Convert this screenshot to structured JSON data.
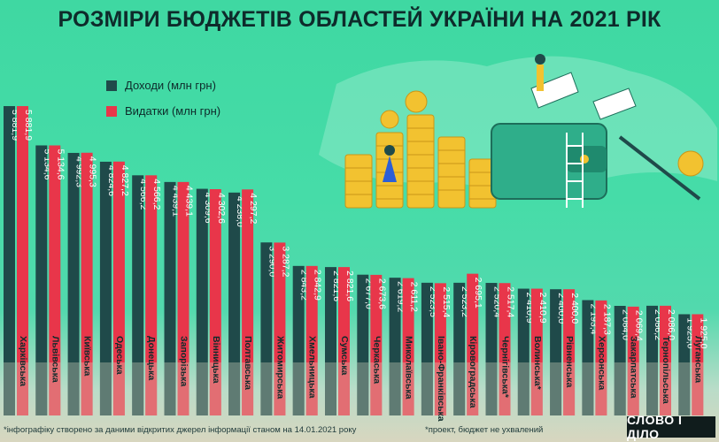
{
  "title": "РОЗМІРИ БЮДЖЕТІВ ОБЛАСТЕЙ УКРАЇНИ НА 2021 РІК",
  "legend": [
    {
      "label": "Доходи (млн грн)",
      "color": "#1f4a4a"
    },
    {
      "label": "Видатки (млн грн)",
      "color": "#e8364a"
    }
  ],
  "footnote": "*інфографіку створено за даними відкритих джерел інформації станом на 14.01.2021 року",
  "footnote2": "*проект, бюджет не ухвалений",
  "logo": "СЛОВО І ДІЛО",
  "chart_data": {
    "type": "bar",
    "categories": [
      "Харківська",
      "Львівська",
      "Київська",
      "Одеська",
      "Донецька",
      "Запорізька",
      "Вінницька",
      "Полтавська",
      "Житомирська",
      "Хмельницька",
      "Сумська",
      "Черкаська",
      "Миколаївська",
      "Івано-Франківська",
      "Кіровоградська",
      "Чернігівська*",
      "Волинська*",
      "Рівненська",
      "Херсонська",
      "Закарпатська",
      "Тернопільська",
      "Луганська"
    ],
    "series": [
      {
        "name": "Доходи (млн грн)",
        "color": "#1f4a4a",
        "values": [
          5881.9,
          5134.6,
          4992.3,
          4824.6,
          4566.2,
          4439.1,
          4309.6,
          4238.0,
          3290.0,
          2843.2,
          2821.6,
          2677.0,
          2619.2,
          2523.5,
          2523.2,
          2520.4,
          2410.9,
          2400.0,
          2193.4,
          2084.0,
          2086.2,
          1925.0
        ],
        "labels": [
          "5 881,9",
          "5 134,6",
          "4 992,3",
          "4 824,6",
          "4 566,2",
          "4 439,1",
          "4 309,6",
          "4 238,0",
          "3 290,0",
          "2 843,2",
          "2 821,6",
          "2 677,0",
          "2 619,2",
          "2 523,5",
          "2 523,2",
          "2 520,4",
          "2 410,9",
          "2 400,0",
          "2 193,4",
          "2 084,0",
          "2 086,2",
          "1 925,0"
        ]
      },
      {
        "name": "Видатки (млн грн)",
        "color": "#e8364a",
        "values": [
          5881.9,
          5134.6,
          4995.3,
          4827.2,
          4566.2,
          4439.1,
          4302.6,
          4297.2,
          3287.2,
          2842.9,
          2821.6,
          2673.6,
          2611.2,
          2515.4,
          2695.1,
          2517.4,
          2410.9,
          2400.0,
          2187.3,
          2069.4,
          2086.0,
          1925.0
        ],
        "labels": [
          "5 881,9",
          "5 134,6",
          "4 995,3",
          "4 827,2",
          "4 566,2",
          "4 439,1",
          "4 302,6",
          "4 297,2",
          "3 287,2",
          "2 842,9",
          "2 821,6",
          "2 673,6",
          "2 611,2",
          "2 515,4",
          "2 695,1",
          "2 517,4",
          "2 410,9",
          "2 400,0",
          "2 187,3",
          "2 069,4",
          "2 086,0",
          "1 925,0"
        ]
      }
    ],
    "grid": false,
    "legend_position": "top-left"
  }
}
